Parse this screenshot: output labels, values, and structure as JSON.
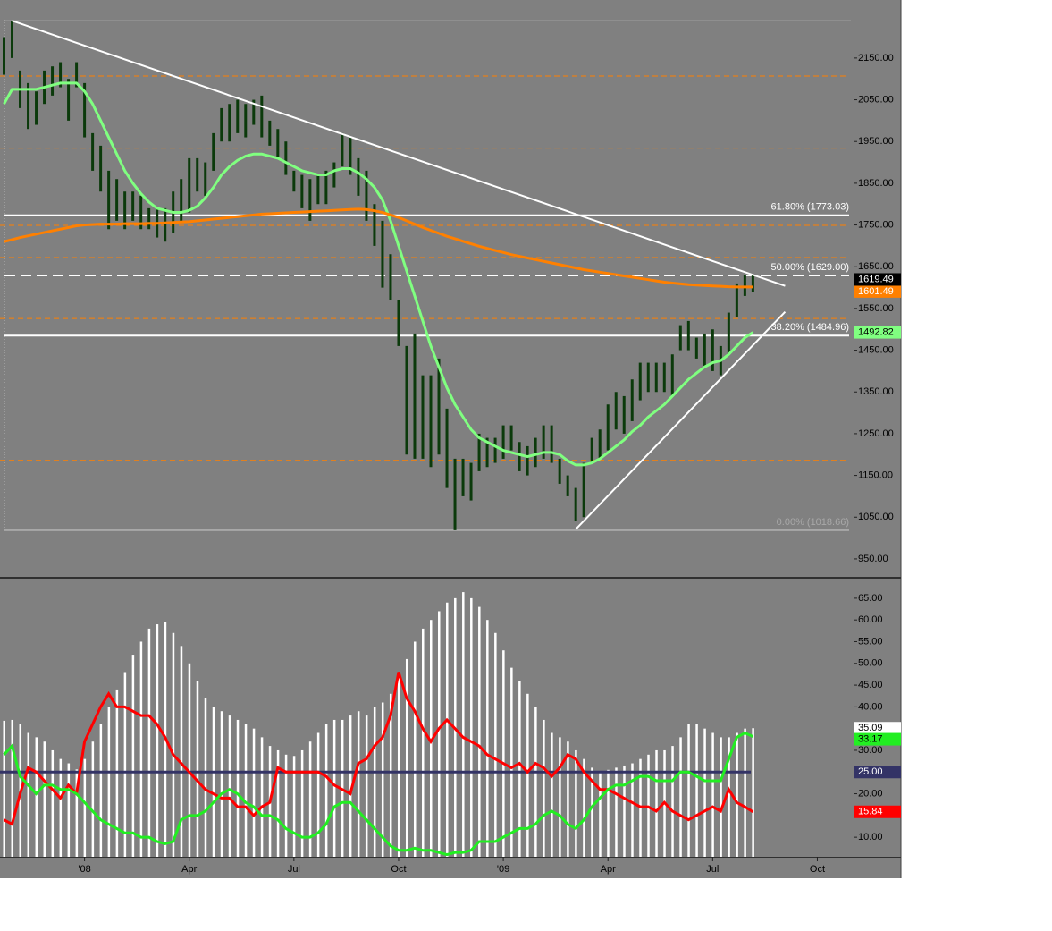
{
  "chart_data": [
    {
      "type": "ohlc",
      "color": "#0b3a0b",
      "ylim": [
        907,
        2289
      ],
      "yticks": [
        {
          "value": 2150,
          "label": "2150.00"
        },
        {
          "value": 2050,
          "label": "2050.00"
        },
        {
          "value": 1950,
          "label": "1950.00"
        },
        {
          "value": 1850,
          "label": "1850.00"
        },
        {
          "value": 1750,
          "label": "1750.00"
        },
        {
          "value": 1650,
          "label": "1650.00"
        },
        {
          "value": 1550,
          "label": "1550.00"
        },
        {
          "value": 1450,
          "label": "1450.00"
        },
        {
          "value": 1350,
          "label": "1350.00"
        },
        {
          "value": 1250,
          "label": "1250.00"
        },
        {
          "value": 1150,
          "label": "1150.00"
        },
        {
          "value": 1050,
          "label": "1050.00"
        },
        {
          "value": 950,
          "label": "950.00"
        }
      ],
      "high": [
        2200,
        2239.32,
        2120,
        2090,
        2070,
        2120,
        2130,
        2140,
        2100,
        2140,
        2090,
        1970,
        1940,
        1880,
        1860,
        1830,
        1830,
        1820,
        1790,
        1790,
        1790,
        1830,
        1860,
        1910,
        1910,
        1900,
        1970,
        2030,
        2040,
        2050,
        2040,
        2050,
        2060,
        2000,
        1980,
        1950,
        1880,
        1870,
        1860,
        1870,
        1880,
        1900,
        1970,
        1960,
        1910,
        1880,
        1800,
        1760,
        1680,
        1570,
        1460,
        1490,
        1390,
        1390,
        1430,
        1310,
        1190,
        1190,
        1180,
        1250,
        1240,
        1240,
        1270,
        1270,
        1230,
        1220,
        1240,
        1270,
        1270,
        1190,
        1150,
        1120,
        1180,
        1240,
        1260,
        1320,
        1350,
        1340,
        1380,
        1420,
        1420,
        1420,
        1420,
        1440,
        1510,
        1520,
        1480,
        1490,
        1500,
        1460,
        1540,
        1610,
        1630,
        1630,
        null,
        null,
        null,
        null,
        null,
        null,
        null,
        null,
        null,
        null,
        null,
        null
      ],
      "low": [
        2110,
        2150,
        2030,
        1980,
        1990,
        2040,
        2060,
        2080,
        2000,
        2080,
        1960,
        1880,
        1830,
        1740,
        1760,
        1740,
        1760,
        1740,
        1740,
        1720,
        1710,
        1730,
        1760,
        1780,
        1830,
        1820,
        1880,
        1950,
        1950,
        1970,
        1960,
        1990,
        1960,
        1940,
        1910,
        1870,
        1830,
        1790,
        1760,
        1800,
        1800,
        1840,
        1890,
        1870,
        1820,
        1760,
        1700,
        1600,
        1570,
        1460,
        1200,
        1190,
        1190,
        1170,
        1200,
        1120,
        1018.66,
        1100,
        1090,
        1160,
        1170,
        1180,
        1190,
        1210,
        1160,
        1150,
        1170,
        1190,
        1180,
        1130,
        1100,
        1040,
        1050,
        1180,
        1190,
        1210,
        1260,
        1250,
        1280,
        1330,
        1350,
        1350,
        1350,
        1340,
        1450,
        1450,
        1430,
        1410,
        1400,
        1390,
        1440,
        1530,
        1580,
        1590,
        null,
        null,
        null,
        null,
        null,
        null,
        null,
        null,
        null,
        null,
        null,
        null
      ],
      "last_price": 1619.49,
      "last_price_color": "#000000",
      "series": [
        {
          "color": "#80ff80",
          "values": [
            2040,
            2075,
            2075,
            2075,
            2075,
            2080,
            2085,
            2090,
            2090,
            2090,
            2070,
            2040,
            2000,
            1960,
            1920,
            1880,
            1850,
            1825,
            1805,
            1790,
            1785,
            1780,
            1780,
            1785,
            1795,
            1815,
            1840,
            1870,
            1890,
            1905,
            1915,
            1920,
            1920,
            1915,
            1910,
            1900,
            1890,
            1880,
            1875,
            1870,
            1870,
            1880,
            1885,
            1885,
            1875,
            1860,
            1840,
            1810,
            1760,
            1700,
            1640,
            1580,
            1520,
            1460,
            1410,
            1360,
            1320,
            1290,
            1260,
            1240,
            1230,
            1220,
            1210,
            1205,
            1200,
            1195,
            1200,
            1205,
            1205,
            1200,
            1185,
            1175,
            1175,
            1180,
            1190,
            1205,
            1220,
            1235,
            1255,
            1270,
            1290,
            1305,
            1320,
            1340,
            1360,
            1380,
            1395,
            1410,
            1420,
            1425,
            1440,
            1460,
            1480,
            1492.82,
            null,
            null,
            null,
            null,
            null,
            null,
            null,
            null,
            null,
            null,
            null,
            null
          ]
        },
        {
          "color": "#ff8000",
          "values": [
            1710,
            1715,
            1720,
            1724,
            1728,
            1732,
            1736,
            1740,
            1744,
            1748,
            1750,
            1751,
            1752,
            1752,
            1752,
            1753,
            1753,
            1753,
            1754,
            1754,
            1755,
            1756,
            1757,
            1758,
            1760,
            1762,
            1764,
            1766,
            1768,
            1770,
            1772,
            1774,
            1776,
            1777,
            1778,
            1779,
            1780,
            1781,
            1782,
            1783,
            1784,
            1785,
            1786,
            1787,
            1788,
            1787,
            1784,
            1780,
            1774,
            1768,
            1760,
            1752,
            1744,
            1737,
            1730,
            1723,
            1717,
            1711,
            1705,
            1699,
            1694,
            1689,
            1684,
            1679,
            1675,
            1671,
            1667,
            1663,
            1659,
            1655,
            1651,
            1647,
            1643,
            1640,
            1637,
            1634,
            1631,
            1628,
            1625,
            1622,
            1619,
            1616,
            1613,
            1611,
            1609,
            1607,
            1606,
            1605,
            1604,
            1603,
            1602,
            1601.5,
            1601.5,
            1601.49,
            null,
            null,
            null,
            null,
            null,
            null,
            null,
            null,
            null,
            null,
            null,
            null
          ]
        }
      ],
      "fib_levels": [
        {
          "value": 1773.03,
          "label": "61.80% (1773.03)",
          "color": "#ffffff",
          "style": "solid"
        },
        {
          "value": 1629,
          "label": "50.00% (1629.00)",
          "color": "#ffffff",
          "style": "dashed"
        },
        {
          "value": 1484.96,
          "label": "38.20% (1484.96)",
          "color": "#ffffff",
          "style": "solid"
        },
        {
          "value": 1018.66,
          "label": "0.00% (1018.66)",
          "color": "#a8a8a8",
          "style": "solid"
        }
      ],
      "levels": [
        2107,
        1934,
        1749,
        1672,
        1526,
        1186
      ],
      "levels_color": "#ff8000",
      "trendlines": [
        {
          "from": [
            1,
            2239.32
          ],
          "to": [
            97,
            1604
          ],
          "color": "#ffffff"
        },
        {
          "from": [
            71,
            1021
          ],
          "to": [
            97,
            1542
          ],
          "color": "#ffffff"
        }
      ]
    },
    {
      "type": "bar",
      "color": "#ffffff",
      "ylim": [
        5.5,
        69.3
      ],
      "yticks": [
        {
          "value": 65,
          "label": "65.00"
        },
        {
          "value": 60,
          "label": "60.00"
        },
        {
          "value": 55,
          "label": "55.00"
        },
        {
          "value": 50,
          "label": "50.00"
        },
        {
          "value": 45,
          "label": "45.00"
        },
        {
          "value": 40,
          "label": "40.00"
        },
        {
          "value": 30,
          "label": "30.00"
        },
        {
          "value": 20,
          "label": "20.00"
        },
        {
          "value": 10,
          "label": "10.00"
        }
      ],
      "categories": [
        null,
        null,
        null,
        null,
        null,
        null,
        null,
        null,
        null,
        null,
        "'08",
        null,
        null,
        null,
        null,
        null,
        null,
        null,
        null,
        null,
        null,
        null,
        null,
        "Apr",
        null,
        null,
        null,
        null,
        null,
        null,
        null,
        null,
        null,
        null,
        null,
        null,
        "Jul",
        null,
        null,
        null,
        null,
        null,
        null,
        null,
        null,
        null,
        null,
        null,
        null,
        "Oct",
        null,
        null,
        null,
        null,
        null,
        null,
        null,
        null,
        null,
        null,
        null,
        null,
        "'09",
        null,
        null,
        null,
        null,
        null,
        null,
        null,
        null,
        null,
        null,
        null,
        null,
        "Apr",
        null,
        null,
        null,
        null,
        null,
        null,
        null,
        null,
        null,
        null,
        null,
        null,
        "Jul",
        null,
        null,
        null,
        null,
        null,
        null,
        null,
        null,
        null,
        null,
        null,
        null,
        "Oct",
        null,
        null,
        null,
        null
      ],
      "values": [
        36.8,
        37,
        36,
        34,
        33,
        32,
        30,
        28,
        27,
        25.6,
        28,
        32,
        36,
        40,
        44,
        48,
        52,
        55,
        58,
        59,
        59.6,
        57,
        54,
        50,
        46,
        42,
        40,
        39,
        38,
        37,
        36,
        35,
        33,
        31,
        30,
        29,
        28.7,
        30,
        32,
        34,
        36,
        37,
        37,
        38,
        39,
        38,
        40,
        41,
        43,
        47,
        51,
        55,
        58,
        60,
        62,
        64,
        65,
        66.4,
        65,
        63,
        60,
        57,
        53,
        49,
        46,
        43,
        40,
        37,
        34,
        33,
        32,
        30,
        28,
        26,
        25,
        25.5,
        26,
        26.5,
        27,
        28,
        29,
        30,
        30,
        31,
        33,
        36,
        36,
        35,
        34,
        33,
        33,
        34,
        35,
        35.09,
        null,
        null,
        null,
        null,
        null,
        null,
        null,
        null,
        null,
        null,
        null,
        null
      ],
      "level": {
        "value": 25,
        "label": "25.00",
        "color": "#333366"
      },
      "series": [
        {
          "color": "#ff0000",
          "values": [
            14,
            13,
            20,
            26,
            25,
            23,
            21,
            19,
            22,
            20,
            32,
            36,
            40,
            43,
            40,
            40,
            39,
            38,
            38,
            36,
            33,
            29,
            27,
            25,
            23,
            21,
            20,
            19,
            19,
            17,
            17,
            15,
            17,
            18,
            26,
            25,
            25,
            25,
            25,
            25,
            24,
            22,
            21,
            20,
            27,
            28,
            31,
            33,
            38,
            48,
            42,
            39,
            35,
            32,
            35,
            37,
            35,
            33,
            32,
            31,
            29,
            28,
            27,
            26,
            27,
            25,
            27,
            26,
            24,
            26,
            29,
            28,
            25,
            23,
            21,
            21,
            20,
            19,
            18,
            17,
            17,
            16,
            18,
            16,
            15,
            14,
            15,
            16,
            17,
            16,
            21,
            18,
            17,
            15.84,
            null,
            null,
            null,
            null,
            null,
            null,
            null,
            null,
            null,
            null,
            null,
            null
          ]
        },
        {
          "color": "#22ee22",
          "values": [
            29,
            31,
            24,
            22,
            20,
            22,
            22,
            21,
            21,
            20,
            18,
            16,
            14,
            13,
            12,
            11,
            11,
            10,
            10,
            9,
            8.5,
            9,
            14,
            15,
            15,
            16,
            18,
            20,
            21,
            20,
            18,
            17,
            15,
            15,
            14,
            12,
            11,
            10,
            10,
            11,
            13,
            17,
            18,
            18,
            16,
            14,
            12,
            10,
            8,
            7,
            7,
            7.5,
            7,
            7,
            6.5,
            6,
            6.5,
            6.5,
            7,
            9,
            9,
            9,
            10,
            11,
            12,
            12,
            13,
            15,
            16,
            15,
            13,
            12,
            14,
            17,
            19,
            21,
            22,
            22,
            23,
            24,
            24,
            23,
            23,
            23,
            25,
            25,
            24,
            23,
            23,
            23,
            28,
            33,
            34,
            33.17,
            null,
            null,
            null,
            null,
            null,
            null,
            null,
            null,
            null,
            null,
            null,
            null
          ]
        }
      ]
    }
  ]
}
